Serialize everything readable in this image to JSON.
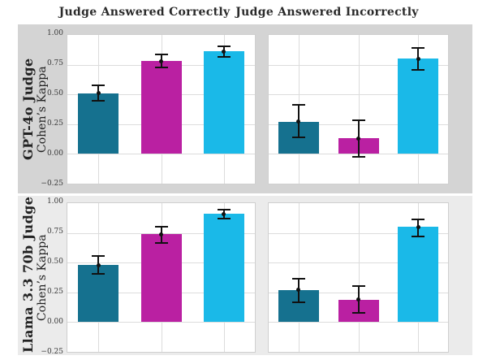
{
  "chart_data": {
    "type": "bar",
    "layout": "2x2-facet-grid",
    "col_titles": [
      "Judge Answered Correctly",
      "Judge Answered Incorrectly"
    ],
    "row_labels": [
      "GPT-4o Judge",
      "Llama 3.3 70b Judge"
    ],
    "ylabel": "Cohen’s Kappa",
    "ylim": [
      -0.25,
      1.0
    ],
    "yticks": [
      1.0,
      0.75,
      0.5,
      0.25,
      0.0,
      -0.25
    ],
    "grid": true,
    "legend": false,
    "error_bars": true,
    "point_markers": true,
    "bar_colors": [
      "#15718f",
      "#ba20a2",
      "#1ab9e8"
    ],
    "row_backgrounds": [
      "#d4d4d4",
      "#ebebeb"
    ],
    "panels": [
      {
        "row": "GPT-4o Judge",
        "col": "Judge Answered Correctly",
        "bars": [
          {
            "color": "#15718f",
            "value": 0.51,
            "ci": [
              0.44,
              0.58
            ]
          },
          {
            "color": "#ba20a2",
            "value": 0.78,
            "ci": [
              0.72,
              0.84
            ]
          },
          {
            "color": "#1ab9e8",
            "value": 0.86,
            "ci": [
              0.81,
              0.91
            ]
          }
        ]
      },
      {
        "row": "GPT-4o Judge",
        "col": "Judge Answered Incorrectly",
        "bars": [
          {
            "color": "#15718f",
            "value": 0.27,
            "ci": [
              0.13,
              0.42
            ]
          },
          {
            "color": "#ba20a2",
            "value": 0.13,
            "ci": [
              -0.03,
              0.29
            ]
          },
          {
            "color": "#1ab9e8",
            "value": 0.8,
            "ci": [
              0.7,
              0.9
            ]
          }
        ]
      },
      {
        "row": "Llama 3.3 70b Judge",
        "col": "Judge Answered Correctly",
        "bars": [
          {
            "color": "#15718f",
            "value": 0.48,
            "ci": [
              0.4,
              0.56
            ]
          },
          {
            "color": "#ba20a2",
            "value": 0.74,
            "ci": [
              0.66,
              0.81
            ]
          },
          {
            "color": "#1ab9e8",
            "value": 0.91,
            "ci": [
              0.86,
              0.95
            ]
          }
        ]
      },
      {
        "row": "Llama 3.3 70b Judge",
        "col": "Judge Answered Incorrectly",
        "bars": [
          {
            "color": "#15718f",
            "value": 0.27,
            "ci": [
              0.16,
              0.37
            ]
          },
          {
            "color": "#ba20a2",
            "value": 0.19,
            "ci": [
              0.07,
              0.31
            ]
          },
          {
            "color": "#1ab9e8",
            "value": 0.8,
            "ci": [
              0.71,
              0.87
            ]
          }
        ]
      }
    ]
  }
}
